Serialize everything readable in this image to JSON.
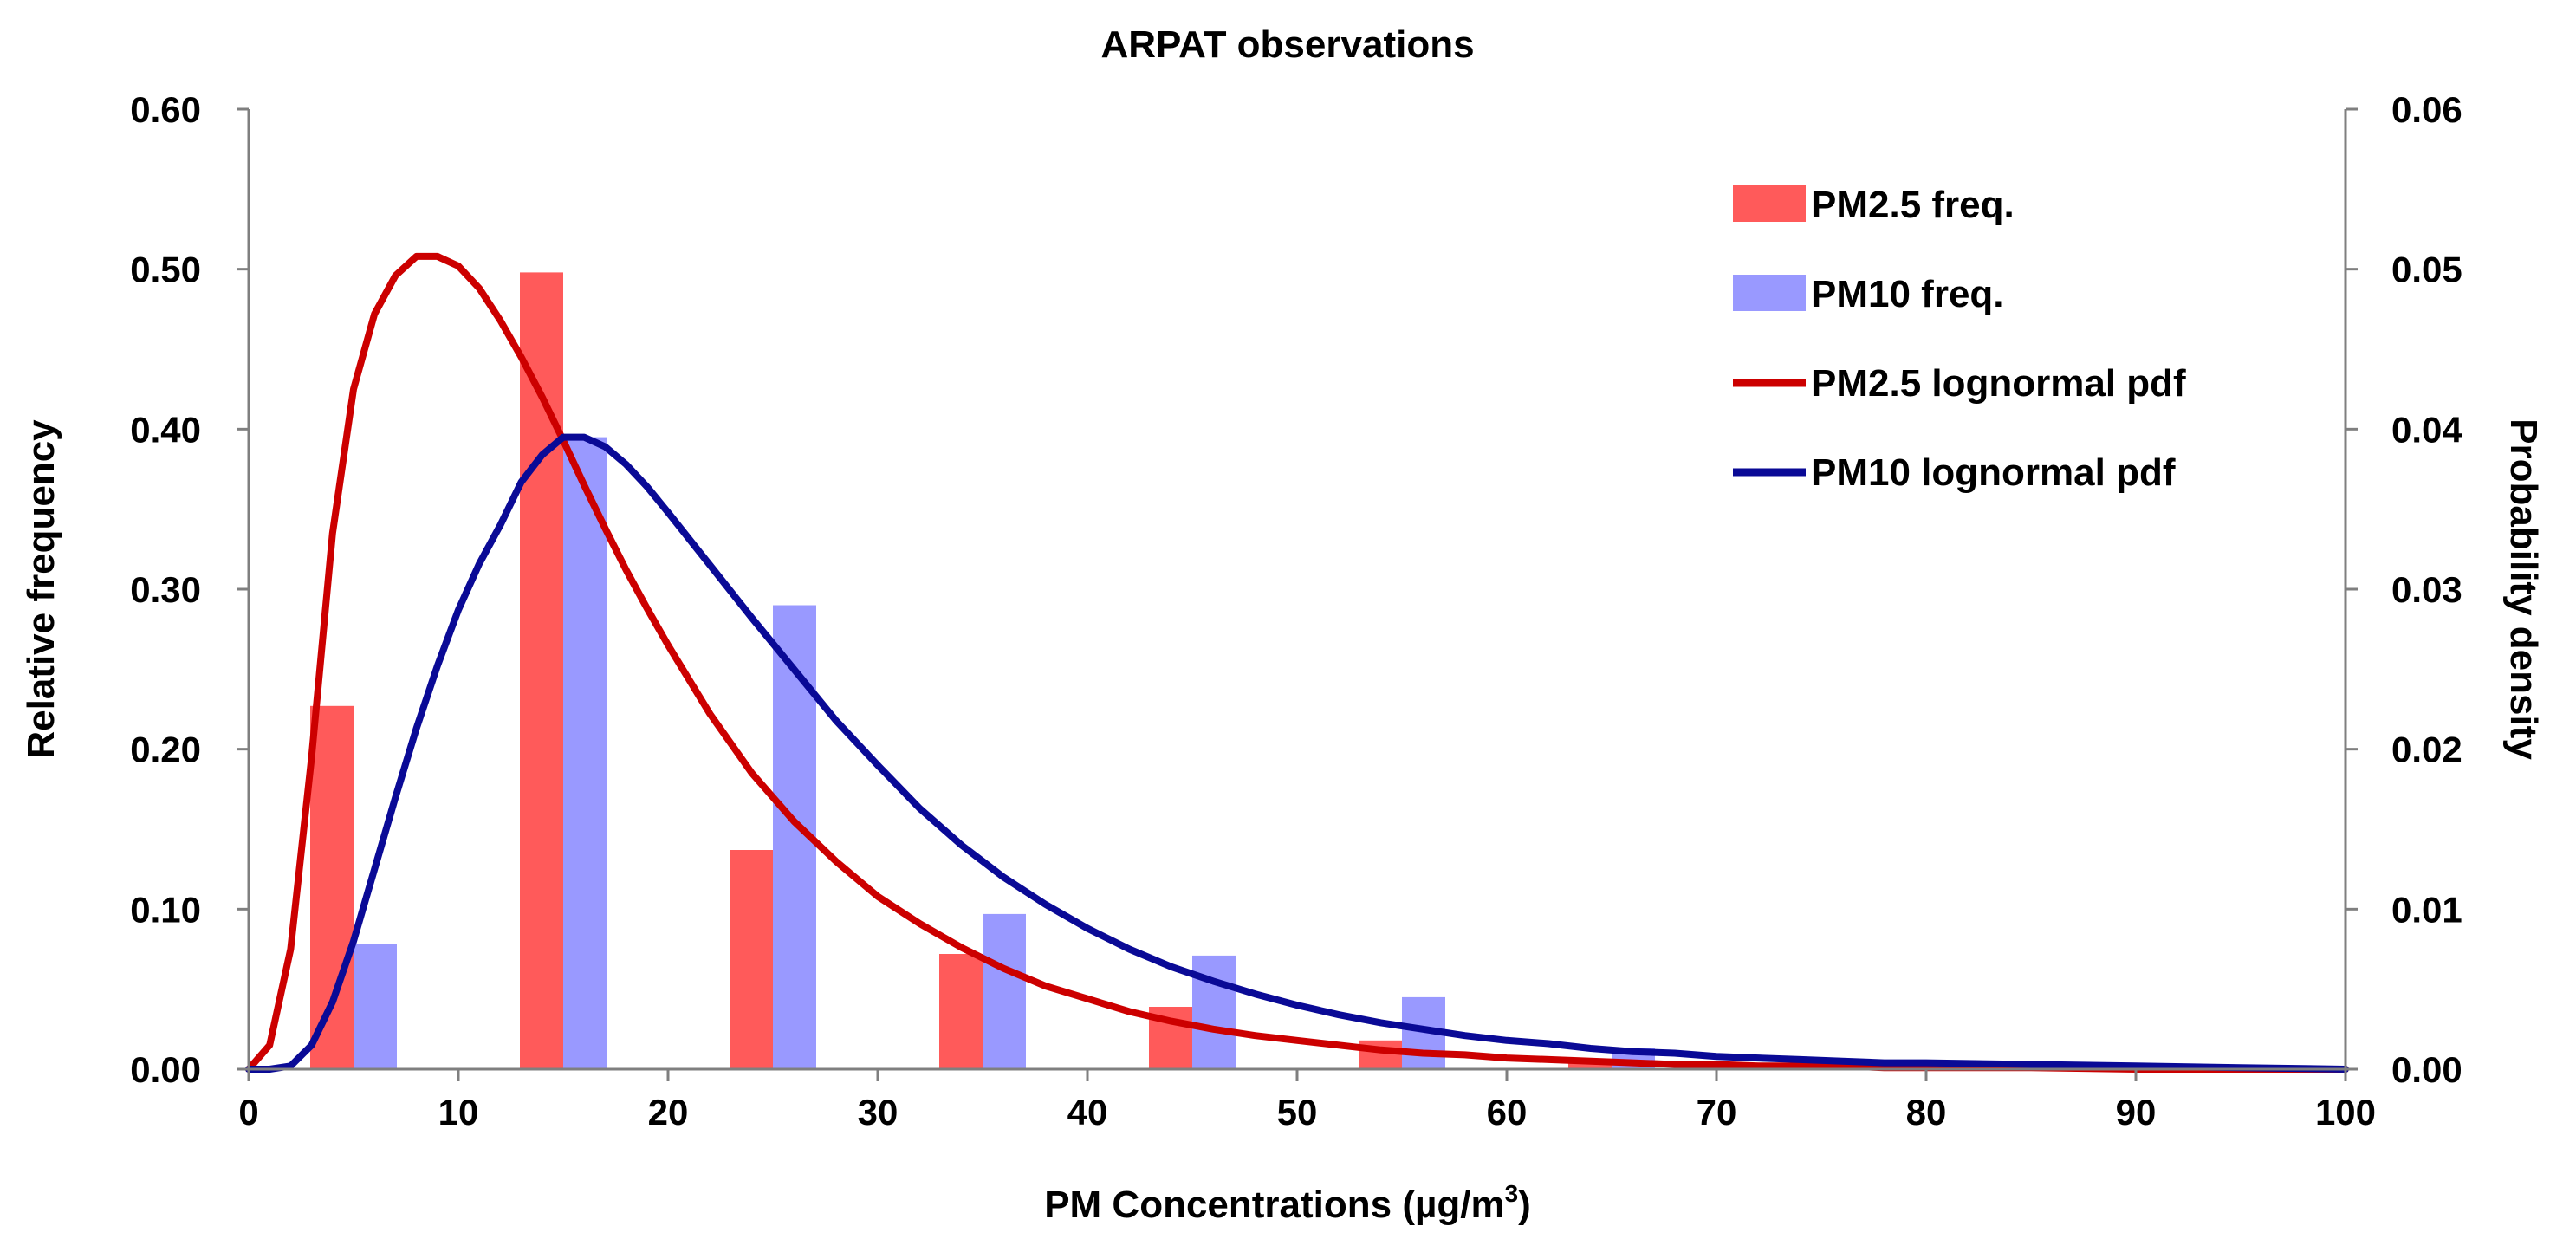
{
  "chart_data": {
    "type": "bar",
    "title": "ARPAT observations",
    "xlabel": "PM Concentrations (µg/m³)",
    "xlabel_parts": {
      "main": "PM Concentrations (µg/m",
      "sup": "3",
      "close": ")"
    },
    "ylabel": "Relative frequency",
    "y2label": "Probability density",
    "xlim": [
      0,
      100
    ],
    "ylim": [
      0,
      0.6
    ],
    "y2lim": [
      0,
      0.06
    ],
    "x_ticks": [
      "0",
      "10",
      "20",
      "30",
      "40",
      "50",
      "60",
      "70",
      "80",
      "90",
      "100"
    ],
    "y_ticks": [
      "0.00",
      "0.10",
      "0.20",
      "0.30",
      "0.40",
      "0.50",
      "0.60"
    ],
    "y2_ticks": [
      "0.00",
      "0.01",
      "0.02",
      "0.03",
      "0.04",
      "0.05",
      "0.06"
    ],
    "legend_position": "top-right",
    "bar_series": [
      {
        "name": "PM2.5 freq.",
        "color": "#ff5a5a",
        "x": [
          5,
          15,
          25,
          35,
          45,
          55,
          65,
          75,
          85,
          95
        ],
        "values": [
          0.227,
          0.498,
          0.137,
          0.072,
          0.039,
          0.018,
          0.005,
          0.002,
          0.001,
          0.0
        ]
      },
      {
        "name": "PM10 freq.",
        "color": "#9999ff",
        "x": [
          5,
          15,
          25,
          35,
          45,
          55,
          65,
          75,
          85,
          95
        ],
        "values": [
          0.078,
          0.395,
          0.29,
          0.097,
          0.071,
          0.045,
          0.013,
          0.005,
          0.002,
          0.001
        ]
      }
    ],
    "line_series": [
      {
        "name": "PM2.5 lognormal pdf",
        "color": "#cc0000",
        "axis": "right",
        "x": [
          0,
          1,
          2,
          3,
          4,
          5,
          6,
          7,
          8,
          9,
          10,
          11,
          12,
          13,
          14,
          15,
          16,
          17,
          18,
          19,
          20,
          22,
          24,
          26,
          28,
          30,
          32,
          34,
          36,
          38,
          40,
          42,
          44,
          46,
          48,
          50,
          52,
          54,
          56,
          58,
          60,
          62,
          64,
          66,
          68,
          70,
          72,
          74,
          76,
          78,
          80,
          85,
          90,
          95,
          100
        ],
        "values": [
          0.0,
          0.0015,
          0.0075,
          0.0195,
          0.0335,
          0.0425,
          0.0472,
          0.0496,
          0.0508,
          0.0508,
          0.0502,
          0.0488,
          0.0468,
          0.0445,
          0.042,
          0.0393,
          0.0365,
          0.0338,
          0.0312,
          0.0288,
          0.0265,
          0.0222,
          0.0185,
          0.0155,
          0.013,
          0.0108,
          0.0091,
          0.0076,
          0.0063,
          0.0052,
          0.0044,
          0.0036,
          0.003,
          0.0025,
          0.0021,
          0.0018,
          0.0015,
          0.0012,
          0.001,
          0.0009,
          0.0007,
          0.0006,
          0.0005,
          0.0004,
          0.0003,
          0.0003,
          0.0002,
          0.0002,
          0.0002,
          0.0001,
          0.0001,
          0.0001,
          0.0,
          0.0,
          0.0
        ]
      },
      {
        "name": "PM10 lognormal pdf",
        "color": "#0a0a96",
        "axis": "right",
        "x": [
          0,
          1,
          2,
          3,
          4,
          5,
          6,
          7,
          8,
          9,
          10,
          11,
          12,
          13,
          14,
          15,
          16,
          17,
          18,
          19,
          20,
          22,
          24,
          26,
          28,
          30,
          32,
          34,
          36,
          38,
          40,
          42,
          44,
          46,
          48,
          50,
          52,
          54,
          56,
          58,
          60,
          62,
          64,
          66,
          68,
          70,
          72,
          74,
          76,
          78,
          80,
          85,
          90,
          95,
          100
        ],
        "values": [
          0.0,
          0.0,
          0.0002,
          0.0015,
          0.0042,
          0.008,
          0.0125,
          0.017,
          0.0213,
          0.0252,
          0.0287,
          0.0316,
          0.034,
          0.0367,
          0.0384,
          0.0395,
          0.0395,
          0.0389,
          0.0378,
          0.0364,
          0.0348,
          0.0315,
          0.0282,
          0.025,
          0.0218,
          0.019,
          0.0163,
          0.014,
          0.012,
          0.0103,
          0.0088,
          0.0075,
          0.0064,
          0.0055,
          0.0047,
          0.004,
          0.0034,
          0.0029,
          0.0025,
          0.0021,
          0.0018,
          0.0016,
          0.0013,
          0.0011,
          0.001,
          0.0008,
          0.0007,
          0.0006,
          0.0005,
          0.0004,
          0.0004,
          0.0003,
          0.0002,
          0.0001,
          0.0
        ]
      }
    ]
  }
}
